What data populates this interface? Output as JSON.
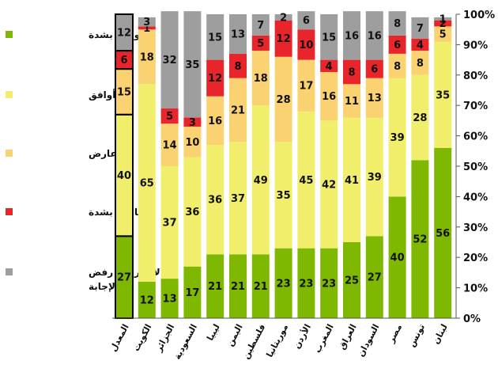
{
  "chart_data": {
    "type": "bar",
    "stacked": true,
    "orientation": "vertical",
    "percent_stacked": true,
    "categories": [
      "المعدل",
      "الكويت",
      "الجزائر",
      "السعودية",
      "ليبيا",
      "اليمن",
      "فلسطين",
      "موريتانيا",
      "الأردن",
      "المغرب",
      "العراق",
      "السودان",
      "مصر",
      "تونس",
      "لبنان"
    ],
    "series": [
      {
        "name": "أوافق بشدة",
        "color": "#7fb800",
        "values": [
          27,
          12,
          13,
          17,
          21,
          21,
          21,
          23,
          23,
          23,
          25,
          27,
          40,
          52,
          56
        ]
      },
      {
        "name": "أوافق",
        "color": "#f0ee6a",
        "values": [
          40,
          65,
          37,
          36,
          36,
          37,
          49,
          35,
          45,
          42,
          41,
          39,
          39,
          28,
          35
        ]
      },
      {
        "name": "أعارض",
        "color": "#fbd272",
        "values": [
          15,
          18,
          14,
          10,
          16,
          21,
          18,
          28,
          17,
          16,
          11,
          13,
          8,
          8,
          5
        ]
      },
      {
        "name": "أعارض بشدة",
        "color": "#e8252a",
        "values": [
          6,
          1,
          5,
          3,
          12,
          8,
          5,
          12,
          10,
          4,
          8,
          6,
          6,
          4,
          2
        ]
      },
      {
        "name": "لا أعرف / رفض الإجابة",
        "color": "#9e9e9e",
        "values": [
          12,
          3,
          32,
          35,
          15,
          13,
          7,
          2,
          6,
          15,
          16,
          16,
          8,
          7,
          1
        ]
      }
    ],
    "y_ticks": [
      "0%",
      "10%",
      "20%",
      "30%",
      "40%",
      "50%",
      "60%",
      "70%",
      "80%",
      "90%",
      "100%"
    ],
    "ylim": [
      0,
      100
    ],
    "y_axis_side": "right",
    "legend_position": "left",
    "highlighted_category": "المعدل"
  }
}
